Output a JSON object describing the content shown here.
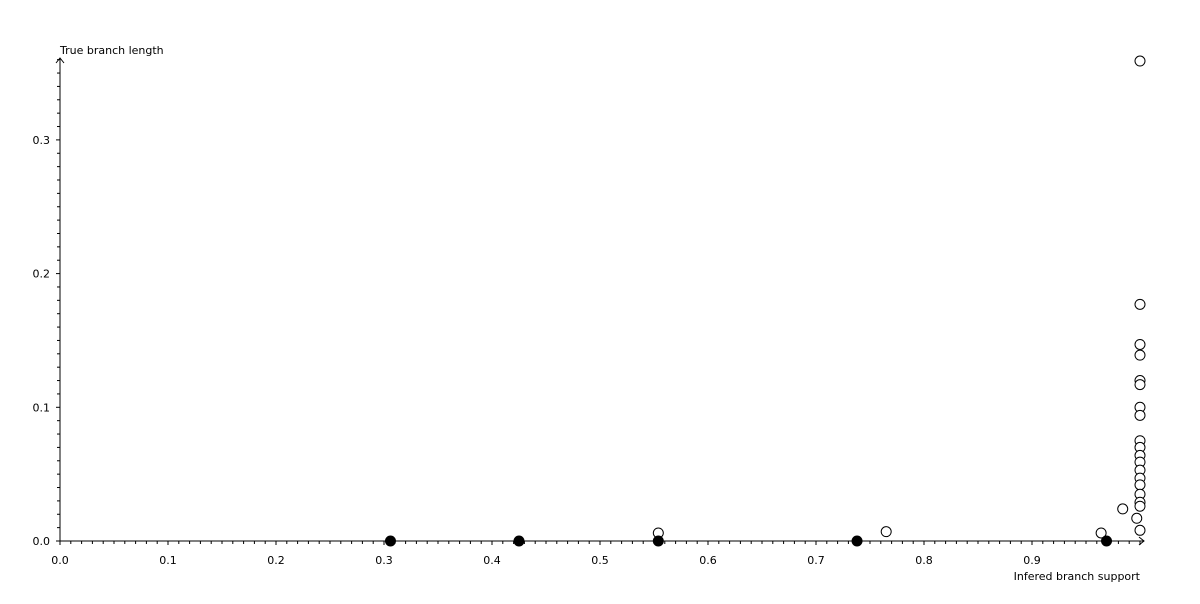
{
  "chart_data": {
    "type": "scatter",
    "title": "",
    "xlabel": "Infered branch support",
    "ylabel": "True branch length",
    "xlim": [
      0.0,
      1.0
    ],
    "ylim": [
      0.0,
      0.36
    ],
    "x_ticks": [
      "0.0",
      "0.1",
      "0.2",
      "0.3",
      "0.4",
      "0.5",
      "0.6",
      "0.7",
      "0.8",
      "0.9"
    ],
    "y_ticks": [
      "0.0",
      "0.1",
      "0.2",
      "0.3"
    ],
    "grid": false,
    "series": [
      {
        "marker": "open-circle",
        "color": "#000000",
        "points": [
          [
            1.0,
            0.359
          ],
          [
            1.0,
            0.177
          ],
          [
            1.0,
            0.147
          ],
          [
            1.0,
            0.139
          ],
          [
            1.0,
            0.12
          ],
          [
            1.0,
            0.117
          ],
          [
            1.0,
            0.1
          ],
          [
            1.0,
            0.094
          ],
          [
            1.0,
            0.075
          ],
          [
            1.0,
            0.07
          ],
          [
            1.0,
            0.064
          ],
          [
            1.0,
            0.059
          ],
          [
            1.0,
            0.053
          ],
          [
            1.0,
            0.047
          ],
          [
            1.0,
            0.042
          ],
          [
            1.0,
            0.035
          ],
          [
            1.0,
            0.029
          ],
          [
            1.0,
            0.026
          ],
          [
            1.0,
            0.008
          ],
          [
            0.997,
            0.017
          ],
          [
            0.984,
            0.024
          ],
          [
            0.964,
            0.006
          ],
          [
            0.765,
            0.007
          ],
          [
            0.554,
            0.006
          ]
        ]
      },
      {
        "marker": "filled-circle",
        "color": "#000000",
        "points": [
          [
            0.306,
            0.0
          ],
          [
            0.425,
            0.0
          ],
          [
            0.554,
            0.0
          ],
          [
            0.738,
            0.0
          ],
          [
            0.969,
            0.0
          ]
        ]
      }
    ]
  }
}
